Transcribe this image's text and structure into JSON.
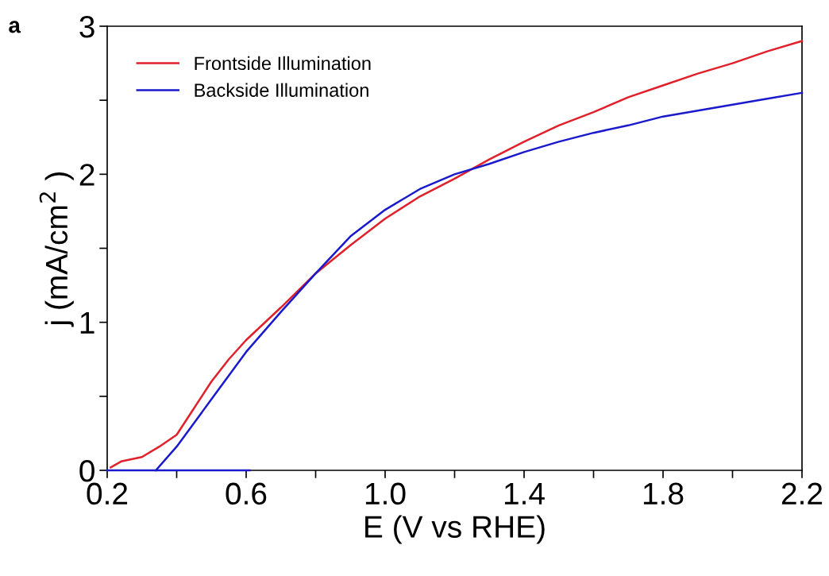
{
  "chart_data": {
    "type": "line",
    "xlabel": "E (V vs RHE)",
    "ylabel": "j (mA/cm$^{2}$ )",
    "annotations": [
      "a"
    ],
    "xlim": [
      0.2,
      2.2
    ],
    "xticks": [
      0.2,
      {
        "value": 0.4,
        "label": null
      },
      0.6,
      {
        "value": 0.8,
        "label": null
      },
      {
        "value": 1.0,
        "label": "1.0"
      },
      {
        "value": 1.2,
        "label": null
      },
      1.4,
      {
        "value": 1.6,
        "label": null
      },
      1.8,
      {
        "value": 2.0,
        "label": null
      },
      2.2
    ],
    "ylim": [
      0,
      3
    ],
    "yticks": [
      0,
      {
        "value": 0.5,
        "label": null
      },
      1,
      {
        "value": 1.5,
        "label": null
      },
      2,
      {
        "value": 2.5,
        "label": null
      },
      3
    ],
    "grid": false,
    "legend": "top left",
    "marker": "none",
    "line_style": "solid",
    "series": [
      {
        "name": "Frontside Illumination",
        "color": "#e0202a",
        "x": [
          0.21,
          0.24,
          0.3,
          0.35,
          0.4,
          0.45,
          0.5,
          0.55,
          0.6,
          0.7,
          0.8,
          0.9,
          1.0,
          1.1,
          1.2,
          1.3,
          1.4,
          1.5,
          1.6,
          1.7,
          1.8,
          1.9,
          2.0,
          2.1,
          2.2
        ],
        "values": [
          0.02,
          0.06,
          0.09,
          0.16,
          0.24,
          0.42,
          0.6,
          0.75,
          0.88,
          1.1,
          1.33,
          1.52,
          1.7,
          1.85,
          1.97,
          2.1,
          2.22,
          2.33,
          2.42,
          2.52,
          2.6,
          2.68,
          2.75,
          2.83,
          2.9
        ]
      },
      {
        "name": "Backside Illumination",
        "color": "#1a1acc",
        "x": [
          0.34,
          0.4,
          0.5,
          0.6,
          0.7,
          0.8,
          0.9,
          1.0,
          1.1,
          1.2,
          1.3,
          1.4,
          1.5,
          1.6,
          1.7,
          1.8,
          1.9,
          2.0,
          2.1,
          2.2
        ],
        "values": [
          0,
          0.16,
          0.48,
          0.8,
          1.07,
          1.33,
          1.58,
          1.76,
          1.9,
          2.0,
          2.07,
          2.15,
          2.22,
          2.28,
          2.33,
          2.39,
          2.43,
          2.47,
          2.51,
          2.55
        ]
      },
      {
        "color": "#1a1acc",
        "x": [
          0.2,
          0.61
        ],
        "values": [
          0,
          0
        ]
      }
    ]
  }
}
